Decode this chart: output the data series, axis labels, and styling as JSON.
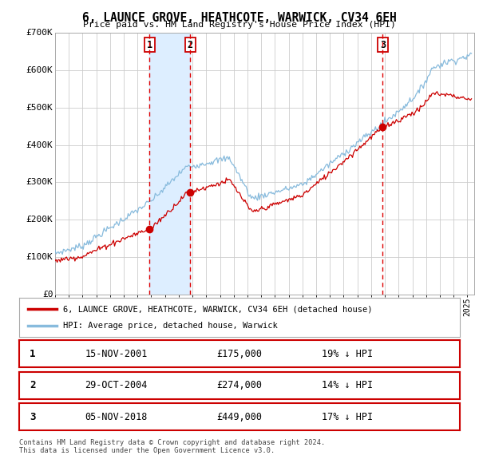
{
  "title": "6, LAUNCE GROVE, HEATHCOTE, WARWICK, CV34 6EH",
  "subtitle": "Price paid vs. HM Land Registry's House Price Index (HPI)",
  "ylim": [
    0,
    700000
  ],
  "yticks": [
    0,
    100000,
    200000,
    300000,
    400000,
    500000,
    600000,
    700000
  ],
  "ytick_labels": [
    "£0",
    "£100K",
    "£200K",
    "£300K",
    "£400K",
    "£500K",
    "£600K",
    "£700K"
  ],
  "xlim_start": 1995.0,
  "xlim_end": 2025.5,
  "xtick_years": [
    1995,
    1996,
    1997,
    1998,
    1999,
    2000,
    2001,
    2002,
    2003,
    2004,
    2005,
    2006,
    2007,
    2008,
    2009,
    2010,
    2011,
    2012,
    2013,
    2014,
    2015,
    2016,
    2017,
    2018,
    2019,
    2020,
    2021,
    2022,
    2023,
    2024,
    2025
  ],
  "sale_color": "#cc0000",
  "hpi_color": "#88bbdd",
  "marker_color": "#cc0000",
  "vline_color": "#dd0000",
  "shade_color": "#ddeeff",
  "sale_dates": [
    2001.875,
    2004.833,
    2018.847
  ],
  "sale_prices": [
    175000,
    274000,
    449000
  ],
  "sale_labels": [
    "1",
    "2",
    "3"
  ],
  "legend_sale_label": "6, LAUNCE GROVE, HEATHCOTE, WARWICK, CV34 6EH (detached house)",
  "legend_hpi_label": "HPI: Average price, detached house, Warwick",
  "table_rows": [
    {
      "num": "1",
      "date": "15-NOV-2001",
      "price": "£175,000",
      "pct": "19% ↓ HPI"
    },
    {
      "num": "2",
      "date": "29-OCT-2004",
      "price": "£274,000",
      "pct": "14% ↓ HPI"
    },
    {
      "num": "3",
      "date": "05-NOV-2018",
      "price": "£449,000",
      "pct": "17% ↓ HPI"
    }
  ],
  "footer1": "Contains HM Land Registry data © Crown copyright and database right 2024.",
  "footer2": "This data is licensed under the Open Government Licence v3.0.",
  "background_color": "#ffffff",
  "grid_color": "#cccccc"
}
